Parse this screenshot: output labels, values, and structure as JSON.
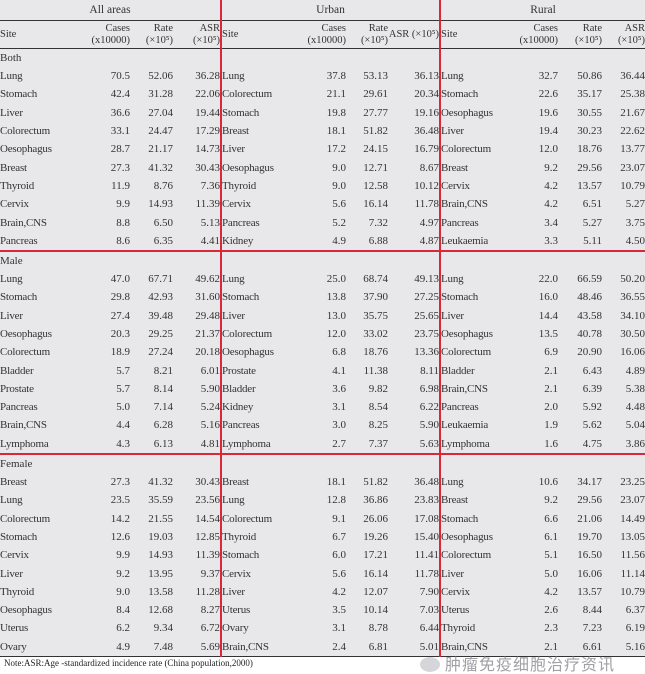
{
  "groups": [
    "All areas",
    "Urban",
    "Rural"
  ],
  "columns": {
    "site": "Site",
    "cases": "Cases (x10000)",
    "rate": "Rate (×10⁵)",
    "asr": "ASR (×10⁵)"
  },
  "sections": [
    {
      "label": "Both",
      "all": [
        [
          "Lung",
          "70.5",
          "52.06",
          "36.28"
        ],
        [
          "Stomach",
          "42.4",
          "31.28",
          "22.06"
        ],
        [
          "Liver",
          "36.6",
          "27.04",
          "19.44"
        ],
        [
          "Colorectum",
          "33.1",
          "24.47",
          "17.29"
        ],
        [
          "Oesophagus",
          "28.7",
          "21.17",
          "14.73"
        ],
        [
          "Breast",
          "27.3",
          "41.32",
          "30.43"
        ],
        [
          "Thyroid",
          "11.9",
          "8.76",
          "7.36"
        ],
        [
          "Cervix",
          "9.9",
          "14.93",
          "11.39"
        ],
        [
          "Brain,CNS",
          "8.8",
          "6.50",
          "5.13"
        ],
        [
          "Pancreas",
          "8.6",
          "6.35",
          "4.41"
        ]
      ],
      "urban": [
        [
          "Lung",
          "37.8",
          "53.13",
          "36.13"
        ],
        [
          "Colorectum",
          "21.1",
          "29.61",
          "20.34"
        ],
        [
          "Stomach",
          "19.8",
          "27.77",
          "19.16"
        ],
        [
          "Breast",
          "18.1",
          "51.82",
          "36.48"
        ],
        [
          "Liver",
          "17.2",
          "24.15",
          "16.79"
        ],
        [
          "Oesophagus",
          "9.0",
          "12.71",
          "8.67"
        ],
        [
          "Thyroid",
          "9.0",
          "12.58",
          "10.12"
        ],
        [
          "Cervix",
          "5.6",
          "16.14",
          "11.78"
        ],
        [
          "Pancreas",
          "5.2",
          "7.32",
          "4.97"
        ],
        [
          "Kidney",
          "4.9",
          "6.88",
          "4.87"
        ]
      ],
      "rural": [
        [
          "Lung",
          "32.7",
          "50.86",
          "36.44"
        ],
        [
          "Stomach",
          "22.6",
          "35.17",
          "25.38"
        ],
        [
          "Oesophagus",
          "19.6",
          "30.55",
          "21.67"
        ],
        [
          "Liver",
          "19.4",
          "30.23",
          "22.62"
        ],
        [
          "Colorectum",
          "12.0",
          "18.76",
          "13.77"
        ],
        [
          "Breast",
          "9.2",
          "29.56",
          "23.07"
        ],
        [
          "Cervix",
          "4.2",
          "13.57",
          "10.79"
        ],
        [
          "Brain,CNS",
          "4.2",
          "6.51",
          "5.27"
        ],
        [
          "Pancreas",
          "3.4",
          "5.27",
          "3.75"
        ],
        [
          "Leukaemia",
          "3.3",
          "5.11",
          "4.50"
        ]
      ]
    },
    {
      "label": "Male",
      "all": [
        [
          "Lung",
          "47.0",
          "67.71",
          "49.62"
        ],
        [
          "Stomach",
          "29.8",
          "42.93",
          "31.60"
        ],
        [
          "Liver",
          "27.4",
          "39.48",
          "29.48"
        ],
        [
          "Oesophagus",
          "20.3",
          "29.25",
          "21.37"
        ],
        [
          "Colorectum",
          "18.9",
          "27.24",
          "20.18"
        ],
        [
          "Bladder",
          "5.7",
          "8.21",
          "6.01"
        ],
        [
          "Prostate",
          "5.7",
          "8.14",
          "5.90"
        ],
        [
          "Pancreas",
          "5.0",
          "7.14",
          "5.24"
        ],
        [
          "Brain,CNS",
          "4.4",
          "6.28",
          "5.16"
        ],
        [
          "Lymphoma",
          "4.3",
          "6.13",
          "4.81"
        ]
      ],
      "urban": [
        [
          "Lung",
          "25.0",
          "68.74",
          "49.13"
        ],
        [
          "Stomach",
          "13.8",
          "37.90",
          "27.25"
        ],
        [
          "Liver",
          "13.0",
          "35.75",
          "25.65"
        ],
        [
          "Colorectum",
          "12.0",
          "33.02",
          "23.75"
        ],
        [
          "Oesophagus",
          "6.8",
          "18.76",
          "13.36"
        ],
        [
          "Prostate",
          "4.1",
          "11.38",
          "8.11"
        ],
        [
          "Bladder",
          "3.6",
          "9.82",
          "6.98"
        ],
        [
          "Kidney",
          "3.1",
          "8.54",
          "6.22"
        ],
        [
          "Pancreas",
          "3.0",
          "8.25",
          "5.90"
        ],
        [
          "Lymphoma",
          "2.7",
          "7.37",
          "5.63"
        ]
      ],
      "rural": [
        [
          "Lung",
          "22.0",
          "66.59",
          "50.20"
        ],
        [
          "Stomach",
          "16.0",
          "48.46",
          "36.55"
        ],
        [
          "Liver",
          "14.4",
          "43.58",
          "34.10"
        ],
        [
          "Oesophagus",
          "13.5",
          "40.78",
          "30.50"
        ],
        [
          "Colorectum",
          "6.9",
          "20.90",
          "16.06"
        ],
        [
          "Bladder",
          "2.1",
          "6.43",
          "4.89"
        ],
        [
          "Brain,CNS",
          "2.1",
          "6.39",
          "5.38"
        ],
        [
          "Pancreas",
          "2.0",
          "5.92",
          "4.48"
        ],
        [
          "Leukaemia",
          "1.9",
          "5.62",
          "5.04"
        ],
        [
          "Lymphoma",
          "1.6",
          "4.75",
          "3.86"
        ]
      ]
    },
    {
      "label": "Female",
      "all": [
        [
          "Breast",
          "27.3",
          "41.32",
          "30.43"
        ],
        [
          "Lung",
          "23.5",
          "35.59",
          "23.56"
        ],
        [
          "Colorectum",
          "14.2",
          "21.55",
          "14.54"
        ],
        [
          "Stomach",
          "12.6",
          "19.03",
          "12.85"
        ],
        [
          "Cervix",
          "9.9",
          "14.93",
          "11.39"
        ],
        [
          "Liver",
          "9.2",
          "13.95",
          "9.37"
        ],
        [
          "Thyroid",
          "9.0",
          "13.58",
          "11.28"
        ],
        [
          "Oesophagus",
          "8.4",
          "12.68",
          "8.27"
        ],
        [
          "Uterus",
          "6.2",
          "9.34",
          "6.72"
        ],
        [
          "Ovary",
          "4.9",
          "7.48",
          "5.69"
        ]
      ],
      "urban": [
        [
          "Breast",
          "18.1",
          "51.82",
          "36.48"
        ],
        [
          "Lung",
          "12.8",
          "36.86",
          "23.83"
        ],
        [
          "Colorectum",
          "9.1",
          "26.06",
          "17.08"
        ],
        [
          "Thyroid",
          "6.7",
          "19.26",
          "15.40"
        ],
        [
          "Stomach",
          "6.0",
          "17.21",
          "11.41"
        ],
        [
          "Cervix",
          "5.6",
          "16.14",
          "11.78"
        ],
        [
          "Liver",
          "4.2",
          "12.07",
          "7.90"
        ],
        [
          "Uterus",
          "3.5",
          "10.14",
          "7.03"
        ],
        [
          "Ovary",
          "3.1",
          "8.78",
          "6.44"
        ],
        [
          "Brain,CNS",
          "2.4",
          "6.81",
          "5.01"
        ]
      ],
      "rural": [
        [
          "Lung",
          "10.6",
          "34.17",
          "23.25"
        ],
        [
          "Breast",
          "9.2",
          "29.56",
          "23.07"
        ],
        [
          "Stomach",
          "6.6",
          "21.06",
          "14.49"
        ],
        [
          "Oesophagus",
          "6.1",
          "19.70",
          "13.05"
        ],
        [
          "Colorectum",
          "5.1",
          "16.50",
          "11.56"
        ],
        [
          "Liver",
          "5.0",
          "16.06",
          "11.14"
        ],
        [
          "Cervix",
          "4.2",
          "13.57",
          "10.79"
        ],
        [
          "Uterus",
          "2.6",
          "8.44",
          "6.37"
        ],
        [
          "Thyroid",
          "2.3",
          "7.23",
          "6.19"
        ],
        [
          "Brain,CNS",
          "2.1",
          "6.61",
          "5.16"
        ]
      ]
    }
  ],
  "note": "Note:ASR:Age -standardized incidence rate (China population,2000)",
  "watermark": "肿瘤免疫细胞治疗资讯",
  "colors": {
    "divider": "#d8283a",
    "background": "#e8e8ea"
  }
}
